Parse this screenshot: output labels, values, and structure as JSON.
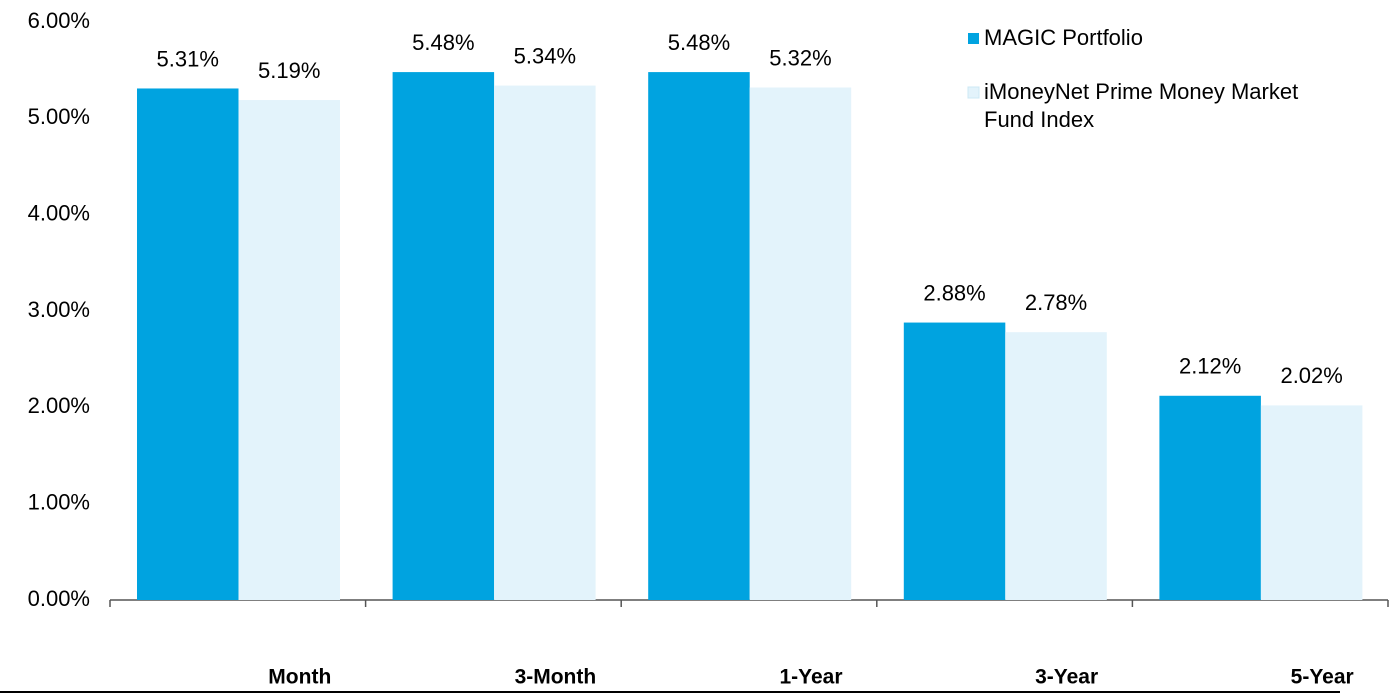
{
  "chart_data": {
    "type": "bar",
    "categories": [
      "Month",
      "3-Month",
      "1-Year",
      "3-Year",
      "5-Year"
    ],
    "series": [
      {
        "name": "MAGIC Portfolio",
        "color": "#00a3e0",
        "values": [
          5.31,
          5.48,
          5.48,
          2.88,
          2.12
        ],
        "value_labels": [
          "5.31%",
          "5.48%",
          "5.48%",
          "2.88%",
          "2.12%"
        ]
      },
      {
        "name": "iMoneyNet Prime Money Market Fund Index",
        "color": "#e3f3fb",
        "values": [
          5.19,
          5.34,
          5.32,
          2.78,
          2.02
        ],
        "value_labels": [
          "5.19%",
          "5.34%",
          "5.32%",
          "2.78%",
          "2.02%"
        ]
      }
    ],
    "ylim": [
      0,
      6
    ],
    "yticks": [
      {
        "value": 0,
        "label": "0.00%"
      },
      {
        "value": 1,
        "label": "1.00%"
      },
      {
        "value": 2,
        "label": "2.00%"
      },
      {
        "value": 3,
        "label": "3.00%"
      },
      {
        "value": 4,
        "label": "4.00%"
      },
      {
        "value": 5,
        "label": "5.00%"
      },
      {
        "value": 6,
        "label": "6.00%"
      }
    ],
    "legend": "top-right",
    "grid": false
  }
}
